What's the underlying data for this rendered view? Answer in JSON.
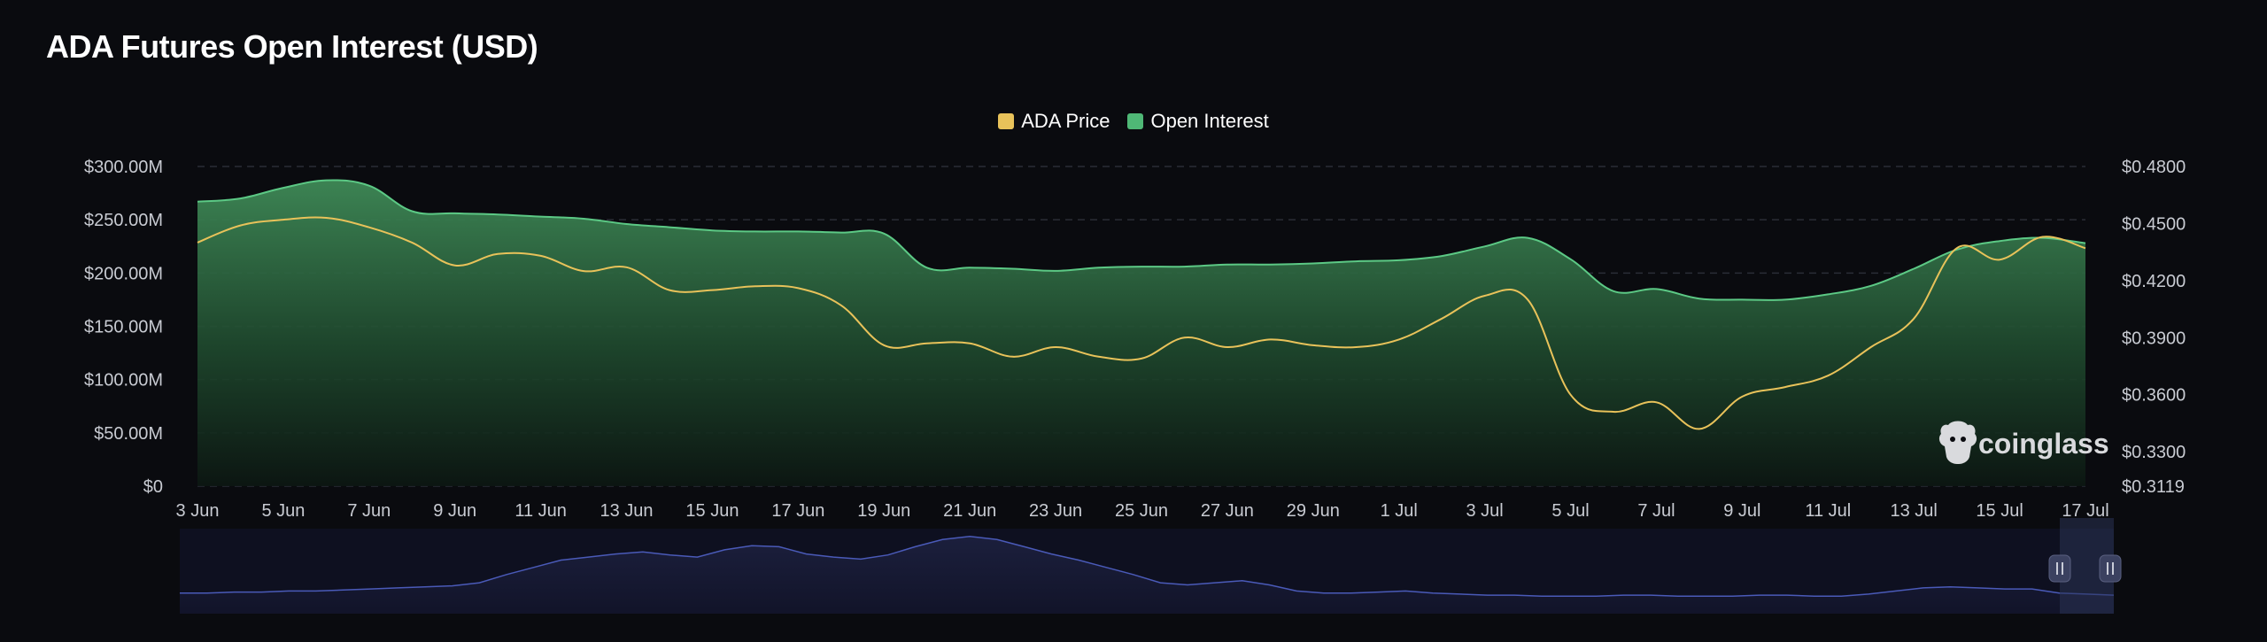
{
  "page": {
    "title": "ADA Futures Open Interest (USD)"
  },
  "legend": [
    {
      "label": "ADA Price",
      "color": "#e8c25a"
    },
    {
      "label": "Open Interest",
      "color": "#4fb876"
    }
  ],
  "watermark": {
    "text": "coinglass"
  },
  "colors": {
    "background": "#0a0b0f",
    "price_line": "#e8c25a",
    "oi_fill_top": "#3f8a57",
    "oi_line": "#5cc985",
    "navigator_line": "#4a5ab8"
  },
  "chart_data": {
    "type": "area",
    "title": "ADA Futures Open Interest (USD)",
    "x": [
      "3 Jun",
      "4 Jun",
      "5 Jun",
      "6 Jun",
      "7 Jun",
      "8 Jun",
      "9 Jun",
      "10 Jun",
      "11 Jun",
      "12 Jun",
      "13 Jun",
      "14 Jun",
      "15 Jun",
      "16 Jun",
      "17 Jun",
      "18 Jun",
      "19 Jun",
      "20 Jun",
      "21 Jun",
      "22 Jun",
      "23 Jun",
      "24 Jun",
      "25 Jun",
      "26 Jun",
      "27 Jun",
      "28 Jun",
      "29 Jun",
      "30 Jun",
      "1 Jul",
      "2 Jul",
      "3 Jul",
      "4 Jul",
      "5 Jul",
      "6 Jul",
      "7 Jul",
      "8 Jul",
      "9 Jul",
      "10 Jul",
      "11 Jul",
      "12 Jul",
      "13 Jul",
      "14 Jul",
      "15 Jul",
      "16 Jul",
      "17 Jul"
    ],
    "x_tick_labels": [
      "3 Jun",
      "5 Jun",
      "7 Jun",
      "9 Jun",
      "11 Jun",
      "13 Jun",
      "15 Jun",
      "17 Jun",
      "19 Jun",
      "21 Jun",
      "23 Jun",
      "25 Jun",
      "27 Jun",
      "29 Jun",
      "1 Jul",
      "3 Jul",
      "5 Jul",
      "7 Jul",
      "9 Jul",
      "11 Jul",
      "13 Jul",
      "15 Jul",
      "17 Jul"
    ],
    "left_axis": {
      "ticks": [
        "$0",
        "$50.00M",
        "$100.00M",
        "$150.00M",
        "$200.00M",
        "$250.00M",
        "$300.00M"
      ],
      "ylim": [
        0,
        300
      ]
    },
    "right_axis": {
      "ticks": [
        "$0.3119",
        "$0.3300",
        "$0.3600",
        "$0.3900",
        "$0.4200",
        "$0.4500",
        "$0.4800"
      ],
      "ylim": [
        0.3119,
        0.48
      ]
    },
    "series": [
      {
        "name": "Open Interest",
        "axis": "left",
        "unit": "USD millions",
        "values": [
          267,
          270,
          280,
          287,
          282,
          258,
          256,
          255,
          253,
          251,
          246,
          243,
          240,
          239,
          239,
          238,
          237,
          205,
          205,
          204,
          202,
          205,
          206,
          206,
          208,
          208,
          209,
          211,
          212,
          216,
          225,
          233,
          213,
          183,
          185,
          176,
          175,
          175,
          180,
          188,
          204,
          222,
          230,
          233,
          228
        ]
      },
      {
        "name": "ADA Price",
        "axis": "right",
        "unit": "USD",
        "values": [
          0.44,
          0.449,
          0.452,
          0.453,
          0.448,
          0.44,
          0.428,
          0.434,
          0.433,
          0.425,
          0.427,
          0.415,
          0.415,
          0.417,
          0.416,
          0.407,
          0.386,
          0.387,
          0.387,
          0.38,
          0.385,
          0.38,
          0.379,
          0.39,
          0.385,
          0.389,
          0.386,
          0.385,
          0.389,
          0.4,
          0.412,
          0.41,
          0.36,
          0.351,
          0.356,
          0.342,
          0.359,
          0.364,
          0.37,
          0.385,
          0.4,
          0.437,
          0.431,
          0.443,
          0.437
        ]
      }
    ],
    "navigator": {
      "values": [
        20,
        20,
        21,
        21,
        22,
        22,
        23,
        24,
        25,
        26,
        27,
        30,
        38,
        45,
        52,
        55,
        58,
        60,
        57,
        55,
        62,
        66,
        65,
        58,
        55,
        53,
        57,
        65,
        72,
        75,
        72,
        65,
        58,
        52,
        45,
        38,
        30,
        28,
        30,
        32,
        28,
        22,
        20,
        20,
        21,
        22,
        20,
        19,
        18,
        18,
        17,
        17,
        17,
        18,
        18,
        17,
        17,
        17,
        18,
        18,
        17,
        17,
        19,
        22,
        25,
        26,
        25,
        24,
        24,
        20,
        19,
        18
      ]
    },
    "grid": true,
    "legend_position": "top-center"
  }
}
